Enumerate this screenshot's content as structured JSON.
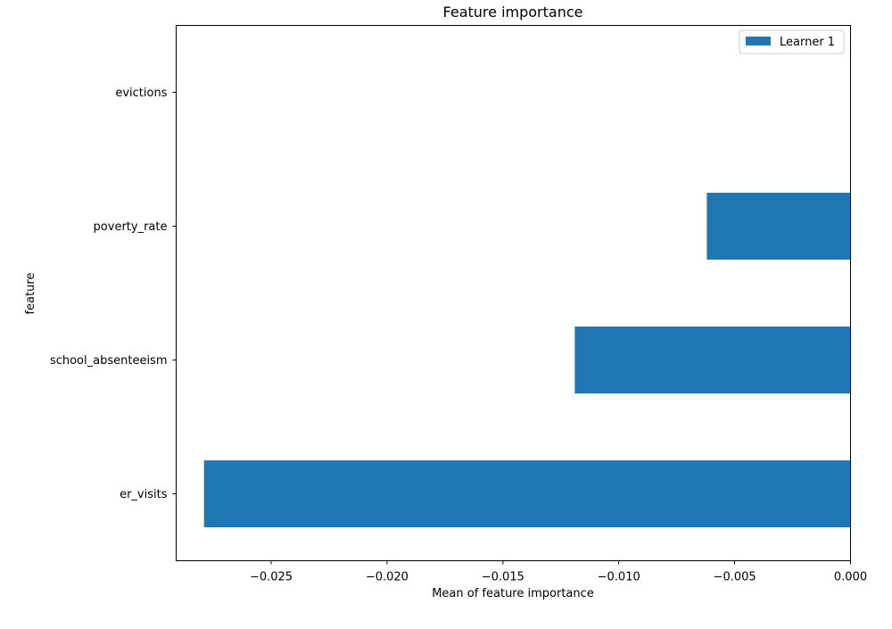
{
  "chart_data": {
    "type": "bar",
    "orientation": "horizontal",
    "title": "Feature importance",
    "xlabel": "Mean of feature importance",
    "ylabel": "feature",
    "categories": [
      "evictions",
      "poverty_rate",
      "school_absenteeism",
      "er_visits"
    ],
    "series": [
      {
        "name": "Learner 1",
        "values": [
          0.0,
          -0.0062,
          -0.0119,
          -0.0279
        ]
      }
    ],
    "xlim": [
      -0.0291,
      0.0
    ],
    "xticks": [
      {
        "value": -0.025,
        "label": "−0.025"
      },
      {
        "value": -0.02,
        "label": "−0.020"
      },
      {
        "value": -0.015,
        "label": "−0.015"
      },
      {
        "value": -0.01,
        "label": "−0.010"
      },
      {
        "value": -0.005,
        "label": "−0.005"
      },
      {
        "value": 0.0,
        "label": "0.000"
      }
    ],
    "grid": false,
    "legend_position": "top-right",
    "bar_color": "#1f77b4"
  }
}
